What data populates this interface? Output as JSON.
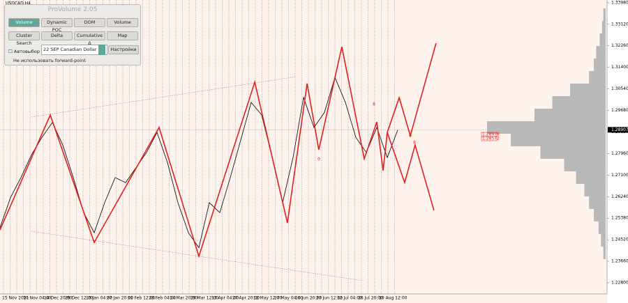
{
  "symbol": "USDCAD,H4",
  "panel": {
    "title": "ProVolume 2.05",
    "buttons": [
      "Volume Profile",
      "Dynamic POC",
      "DOM",
      "Volume",
      "Cluster Search",
      "Delta",
      "Cumulative Δ",
      "Map"
    ],
    "auto": "Автовыбор",
    "instrument": "22 SEP Canadian Dollar",
    "settings": "Настройки",
    "forward": "Не использовать forward-point"
  },
  "chart_data": {
    "type": "line",
    "categories": [
      "15 Nov 2021",
      "30 Nov 04:00",
      "14 Dec 20:00",
      "29 Dec 12:00",
      "13 Jan 04:00",
      "27 Jan 20:00",
      "11 Feb 12:00",
      "28 Feb 04:00",
      "14 Mar 20:00",
      "29 Mar 12:00",
      "13 Apr 04:00",
      "27 Apr 20:00",
      "12 May 12:00",
      "27 May 04:00",
      "10 Jun 20:00",
      "27 Jun 12:00",
      "12 Jul 04:00",
      "26 Jul 20:00",
      "10 Aug 12:00"
    ],
    "ylim": [
      1.22133,
      1.34087
    ],
    "yticks": [
      {
        "value": 1.228,
        "label": "1.22800"
      },
      {
        "value": 1.2366,
        "label": "1.23660"
      },
      {
        "value": 1.2452,
        "label": "1.24520"
      },
      {
        "value": 1.2538,
        "label": "1.25380"
      },
      {
        "value": 1.2624,
        "label": "1.26240"
      },
      {
        "value": 1.271,
        "label": "1.27100"
      },
      {
        "value": 1.2796,
        "label": "1.27960"
      },
      {
        "value": 1.2882,
        "label": "1.28820"
      },
      {
        "value": 1.2968,
        "label": "1.29680"
      },
      {
        "value": 1.3054,
        "label": "1.30540"
      },
      {
        "value": 1.314,
        "label": "1.31400"
      },
      {
        "value": 1.3226,
        "label": "1.32260"
      },
      {
        "value": 1.3312,
        "label": "1.33120"
      },
      {
        "value": 1.3398,
        "label": "1.33980"
      }
    ],
    "current_price": {
      "value": 1.28907,
      "label": "1.28907"
    },
    "price": {
      "color": "#000000",
      "x": [
        -0.5,
        0,
        0.5,
        1,
        1.5,
        2,
        2.5,
        3,
        3.5,
        4,
        4.5,
        5,
        5.5,
        6,
        6.5,
        7,
        7.5,
        8,
        8.5,
        9,
        9.5,
        10,
        10.5,
        11,
        11.5,
        12,
        12.5,
        13,
        13.5,
        14,
        14.5,
        15,
        15.5,
        16,
        16.5,
        17,
        17.5,
        18,
        18.5
      ],
      "values": [
        1.25,
        1.262,
        1.27,
        1.279,
        1.286,
        1.292,
        1.283,
        1.27,
        1.256,
        1.248,
        1.26,
        1.27,
        1.268,
        1.274,
        1.28,
        1.288,
        1.276,
        1.26,
        1.248,
        1.242,
        1.26,
        1.256,
        1.27,
        1.285,
        1.3,
        1.295,
        1.278,
        1.26,
        1.278,
        1.302,
        1.29,
        1.296,
        1.31,
        1.3,
        1.286,
        1.28,
        1.29,
        1.278,
        1.289
      ]
    },
    "zigzag": {
      "color": "#e02020",
      "x": [
        -0.5,
        1.9,
        4.0,
        7.1,
        9.0,
        11.67,
        13.23,
        14.17,
        14.73,
        15.83,
        16.9,
        17.5,
        17.8,
        18.0
      ],
      "values": [
        1.2491,
        1.295,
        1.2441,
        1.29,
        1.2386,
        1.3081,
        1.2519,
        1.3075,
        1.2811,
        1.3222,
        1.2775,
        1.2922,
        1.2728,
        1.288
      ]
    },
    "projection_up": {
      "color": "#e02020",
      "x": [
        18.0,
        18.57,
        19.1,
        20.33
      ],
      "values": [
        1.288,
        1.3019,
        1.2867,
        1.3236
      ]
    },
    "projection_down": {
      "color": "#e02020",
      "x": [
        18.0,
        18.83,
        19.33,
        20.23
      ],
      "values": [
        1.288,
        1.268,
        1.283,
        1.2569
      ]
    },
    "annotations": [
      "8",
      "0",
      "0",
      "8"
    ],
    "levels": [
      "1.28978",
      "1.28572"
    ],
    "volume_profile": {
      "color": "#b8b8b8",
      "prices": [
        1.335,
        1.33,
        1.325,
        1.32,
        1.315,
        1.31,
        1.305,
        1.3,
        1.295,
        1.29,
        1.285,
        1.28,
        1.275,
        1.27,
        1.265,
        1.26,
        1.255,
        1.25,
        1.245,
        1.24
      ],
      "values": [
        2,
        3,
        5,
        8,
        10,
        14,
        30,
        45,
        60,
        100,
        80,
        55,
        35,
        25,
        18,
        14,
        10,
        6,
        4,
        2
      ]
    }
  }
}
